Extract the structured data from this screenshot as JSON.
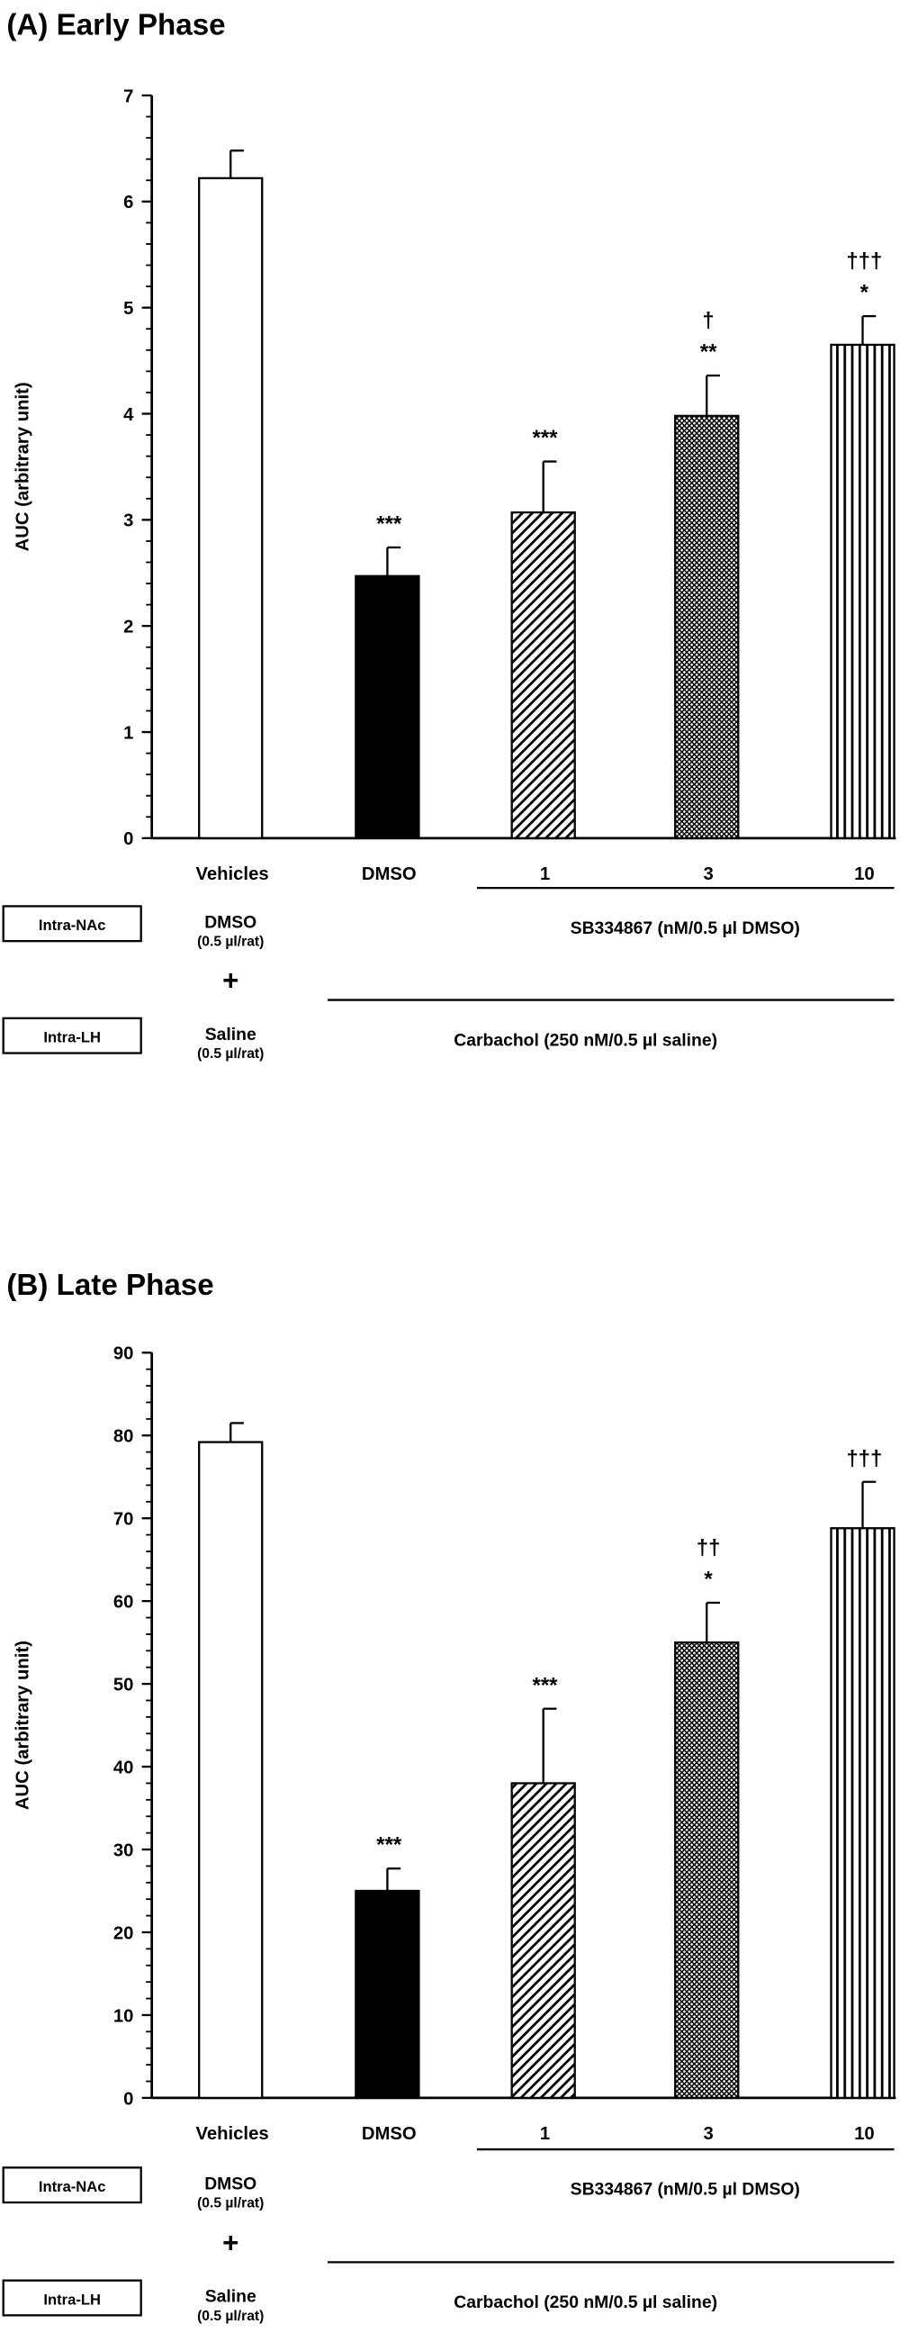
{
  "chart_data": [
    {
      "type": "bar",
      "title": "(A) Early Phase",
      "ylabel": "AUC (arbitrary unit)",
      "ylim": [
        0,
        7
      ],
      "yticks": [
        "0",
        "1",
        "2",
        "3",
        "4",
        "5",
        "6",
        "7"
      ],
      "categories": [
        "Vehicles",
        "DMSO",
        "1",
        "3",
        "10"
      ],
      "values": [
        6.22,
        2.47,
        3.07,
        3.98,
        4.65
      ],
      "errors": [
        0.26,
        0.27,
        0.48,
        0.38,
        0.27
      ],
      "patterns": [
        "white",
        "black",
        "diagonal",
        "crosshatch",
        "vertical"
      ],
      "annotations": [
        [],
        [
          "***"
        ],
        [
          "***"
        ],
        [
          "**",
          "†"
        ],
        [
          "*",
          "†††"
        ]
      ],
      "labels": {
        "intra_nac": "Intra-NAc",
        "intra_lh": "Intra-LH",
        "dmso": "DMSO",
        "dmso_dose": "(0.5 µl/rat)",
        "plus": "+",
        "saline": "Saline",
        "saline_dose": "(0.5 µl/rat)",
        "sb_label": "SB334867 (nM/0.5 µl DMSO)",
        "carbachol_label": "Carbachol (250 nM/0.5 µl saline)"
      }
    },
    {
      "type": "bar",
      "title": "(B) Late Phase",
      "ylabel": "AUC (arbitrary unit)",
      "ylim": [
        0,
        90
      ],
      "yticks": [
        "0",
        "10",
        "20",
        "30",
        "40",
        "50",
        "60",
        "70",
        "80",
        "90"
      ],
      "categories": [
        "Vehicles",
        "DMSO",
        "1",
        "3",
        "10"
      ],
      "values": [
        79.2,
        25.0,
        38.0,
        55.0,
        68.8
      ],
      "errors": [
        2.3,
        2.7,
        9.0,
        4.8,
        5.6
      ],
      "patterns": [
        "white",
        "black",
        "diagonal",
        "crosshatch",
        "vertical"
      ],
      "annotations": [
        [],
        [
          "***"
        ],
        [
          "***"
        ],
        [
          "*",
          "††"
        ],
        [
          "†††"
        ]
      ],
      "labels": {
        "intra_nac": "Intra-NAc",
        "intra_lh": "Intra-LH",
        "dmso": "DMSO",
        "dmso_dose": "(0.5 µl/rat)",
        "plus": "+",
        "saline": "Saline",
        "saline_dose": "(0.5 µl/rat)",
        "sb_label": "SB334867 (nM/0.5 µl DMSO)",
        "carbachol_label": "Carbachol (250 nM/0.5 µl saline)"
      }
    }
  ]
}
